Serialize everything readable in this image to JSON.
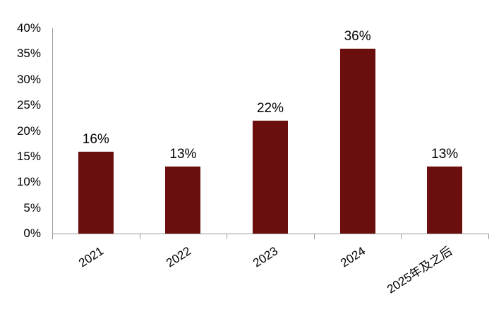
{
  "chart_data": {
    "type": "bar",
    "title": "",
    "xlabel": "",
    "ylabel": "",
    "categories": [
      "2021",
      "2022",
      "2023",
      "2024",
      "2025年及之后"
    ],
    "values": [
      16,
      13,
      22,
      36,
      13
    ],
    "data_labels": [
      "16%",
      "13%",
      "22%",
      "36%",
      "13%"
    ],
    "y_tick_labels": [
      "0%",
      "5%",
      "10%",
      "15%",
      "20%",
      "25%",
      "30%",
      "35%",
      "40%"
    ],
    "y_tick_values": [
      0,
      5,
      10,
      15,
      20,
      25,
      30,
      35,
      40
    ],
    "ylim": [
      0,
      40
    ],
    "grid": false,
    "legend": false,
    "x_label_rotation_deg": -33,
    "colors": {
      "bar": "#6b0e0e",
      "axis": "#9b9b9b",
      "text": "#000000",
      "background": "#ffffff"
    }
  }
}
